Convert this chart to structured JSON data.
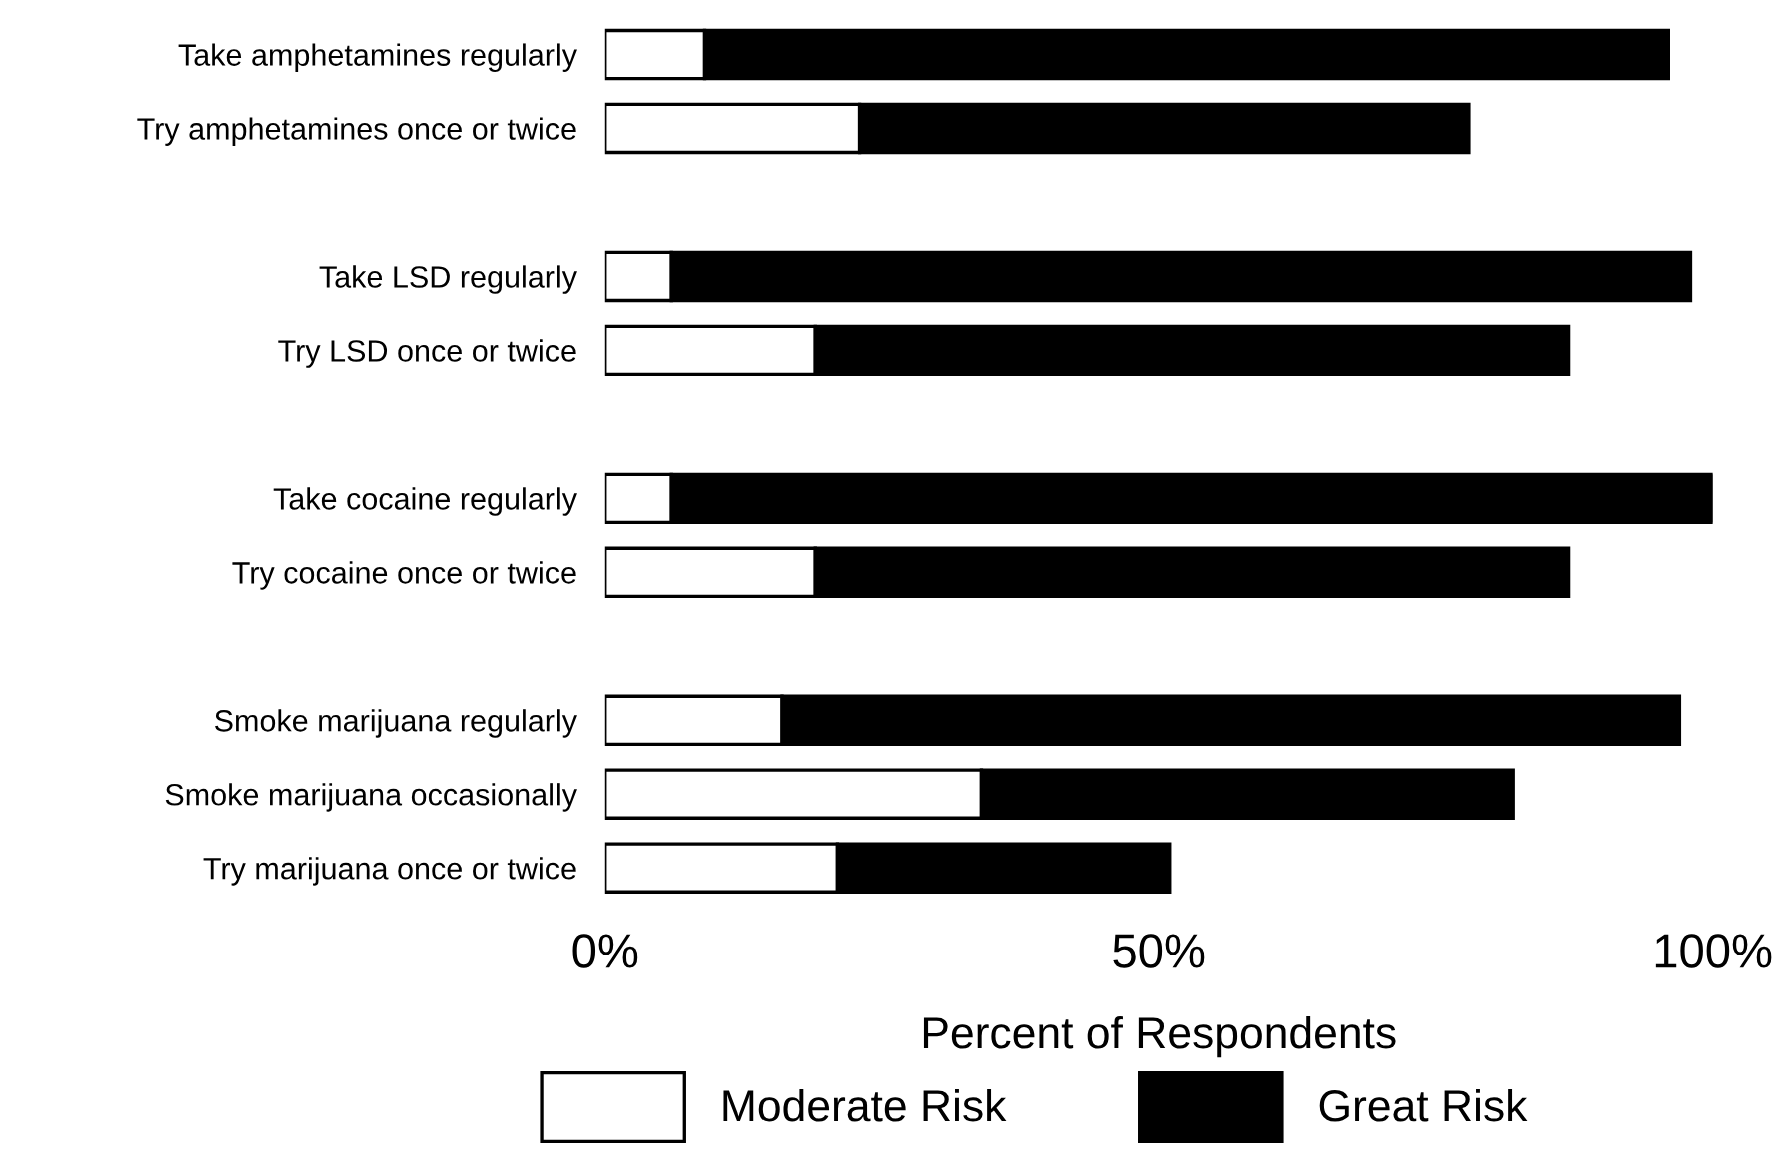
{
  "chart_data": {
    "type": "bar",
    "orientation": "horizontal",
    "stacked": true,
    "categories": [
      "Take amphetamines regularly",
      "Try amphetamines once or twice",
      null,
      "Take LSD regularly",
      "Try LSD once or twice",
      null,
      "Take cocaine regularly",
      "Try cocaine once or twice",
      null,
      "Smoke marijuana regularly",
      "Smoke marijuana occasionally",
      "Try marijuana once or twice"
    ],
    "series": [
      {
        "name": "Moderate Risk",
        "color": "#ffffff",
        "values": [
          9,
          23,
          null,
          6,
          19,
          null,
          6,
          19,
          null,
          16,
          34,
          21
        ]
      },
      {
        "name": "Great Risk",
        "color": "#000000",
        "values": [
          87,
          55,
          null,
          92,
          68,
          null,
          94,
          68,
          null,
          81,
          48,
          30
        ]
      }
    ],
    "xlabel": "Percent of Respondents",
    "xlim": [
      0,
      100
    ],
    "xticks": [
      {
        "value": 0,
        "label": "0%"
      },
      {
        "value": 50,
        "label": "50%"
      },
      {
        "value": 100,
        "label": "100%"
      }
    ],
    "legend": "bottom",
    "grid": false
  }
}
